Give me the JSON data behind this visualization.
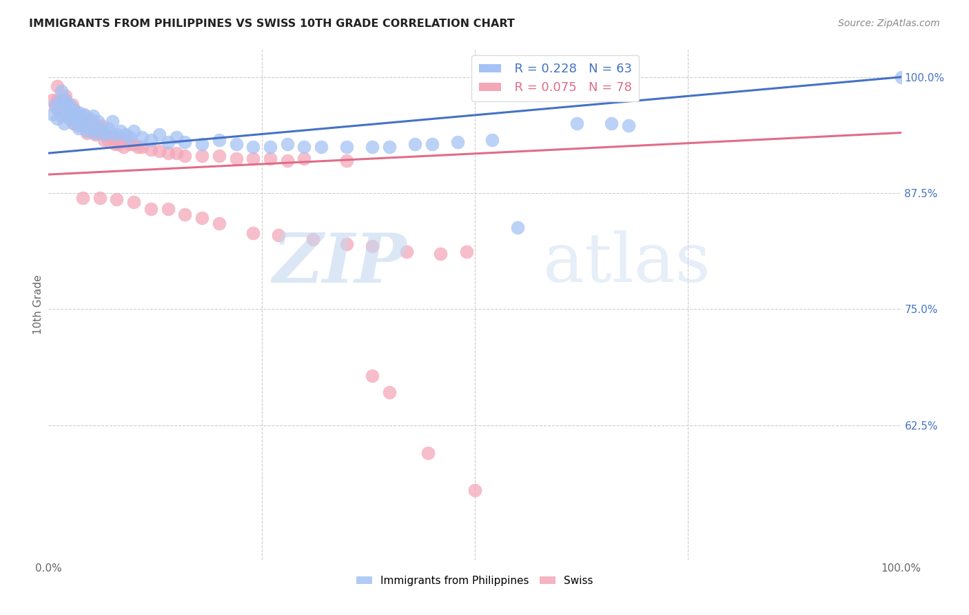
{
  "title": "IMMIGRANTS FROM PHILIPPINES VS SWISS 10TH GRADE CORRELATION CHART",
  "source": "Source: ZipAtlas.com",
  "ylabel": "10th Grade",
  "legend_label1": "Immigrants from Philippines",
  "legend_label2": "Swiss",
  "R1": 0.228,
  "N1": 63,
  "R2": 0.075,
  "N2": 78,
  "color1": "#a4c2f4",
  "color2": "#f4a7b9",
  "trendline_color1": "#4472c4",
  "trendline_color2": "#e06c88",
  "xlim": [
    0.0,
    1.0
  ],
  "ylim": [
    0.48,
    1.03
  ],
  "blue_trend": [
    0.918,
    1.0
  ],
  "pink_trend": [
    0.895,
    0.94
  ],
  "blue_x": [
    0.005,
    0.008,
    0.01,
    0.012,
    0.015,
    0.015,
    0.018,
    0.02,
    0.02,
    0.022,
    0.025,
    0.025,
    0.028,
    0.03,
    0.03,
    0.032,
    0.035,
    0.035,
    0.038,
    0.04,
    0.042,
    0.045,
    0.048,
    0.05,
    0.052,
    0.055,
    0.058,
    0.06,
    0.065,
    0.07,
    0.072,
    0.075,
    0.08,
    0.085,
    0.09,
    0.095,
    0.1,
    0.11,
    0.12,
    0.13,
    0.14,
    0.15,
    0.16,
    0.18,
    0.2,
    0.22,
    0.24,
    0.26,
    0.28,
    0.3,
    0.32,
    0.35,
    0.38,
    0.4,
    0.43,
    0.45,
    0.48,
    0.52,
    0.55,
    0.62,
    0.66,
    0.68,
    1.0
  ],
  "blue_y": [
    0.96,
    0.97,
    0.955,
    0.965,
    0.975,
    0.985,
    0.95,
    0.96,
    0.975,
    0.968,
    0.955,
    0.97,
    0.96,
    0.95,
    0.965,
    0.958,
    0.945,
    0.962,
    0.955,
    0.948,
    0.96,
    0.942,
    0.955,
    0.945,
    0.958,
    0.94,
    0.952,
    0.945,
    0.938,
    0.945,
    0.94,
    0.952,
    0.938,
    0.942,
    0.938,
    0.935,
    0.942,
    0.935,
    0.932,
    0.938,
    0.93,
    0.935,
    0.93,
    0.928,
    0.932,
    0.928,
    0.925,
    0.925,
    0.928,
    0.925,
    0.925,
    0.925,
    0.925,
    0.925,
    0.928,
    0.928,
    0.93,
    0.932,
    0.838,
    0.95,
    0.95,
    0.948,
    1.0
  ],
  "pink_x": [
    0.005,
    0.008,
    0.01,
    0.01,
    0.012,
    0.015,
    0.015,
    0.018,
    0.018,
    0.02,
    0.02,
    0.022,
    0.025,
    0.025,
    0.028,
    0.028,
    0.03,
    0.03,
    0.032,
    0.035,
    0.038,
    0.04,
    0.042,
    0.045,
    0.048,
    0.05,
    0.052,
    0.055,
    0.06,
    0.062,
    0.065,
    0.068,
    0.07,
    0.075,
    0.078,
    0.08,
    0.082,
    0.085,
    0.088,
    0.09,
    0.095,
    0.1,
    0.105,
    0.11,
    0.12,
    0.13,
    0.14,
    0.15,
    0.16,
    0.18,
    0.2,
    0.22,
    0.24,
    0.26,
    0.28,
    0.3,
    0.35,
    0.04,
    0.06,
    0.08,
    0.1,
    0.12,
    0.14,
    0.16,
    0.18,
    0.2,
    0.24,
    0.27,
    0.31,
    0.35,
    0.38,
    0.42,
    0.46,
    0.49,
    0.38,
    0.4,
    0.445,
    0.5
  ],
  "pink_y": [
    0.975,
    0.968,
    0.975,
    0.99,
    0.972,
    0.97,
    0.958,
    0.965,
    0.975,
    0.968,
    0.98,
    0.96,
    0.955,
    0.968,
    0.96,
    0.97,
    0.95,
    0.965,
    0.958,
    0.948,
    0.955,
    0.948,
    0.958,
    0.94,
    0.952,
    0.942,
    0.95,
    0.938,
    0.94,
    0.948,
    0.932,
    0.938,
    0.932,
    0.935,
    0.928,
    0.935,
    0.928,
    0.93,
    0.925,
    0.932,
    0.928,
    0.928,
    0.925,
    0.925,
    0.922,
    0.92,
    0.918,
    0.918,
    0.915,
    0.915,
    0.915,
    0.912,
    0.912,
    0.912,
    0.91,
    0.912,
    0.91,
    0.87,
    0.87,
    0.868,
    0.865,
    0.858,
    0.858,
    0.852,
    0.848,
    0.842,
    0.832,
    0.83,
    0.825,
    0.82,
    0.818,
    0.812,
    0.81,
    0.812,
    0.678,
    0.66,
    0.595,
    0.555
  ]
}
